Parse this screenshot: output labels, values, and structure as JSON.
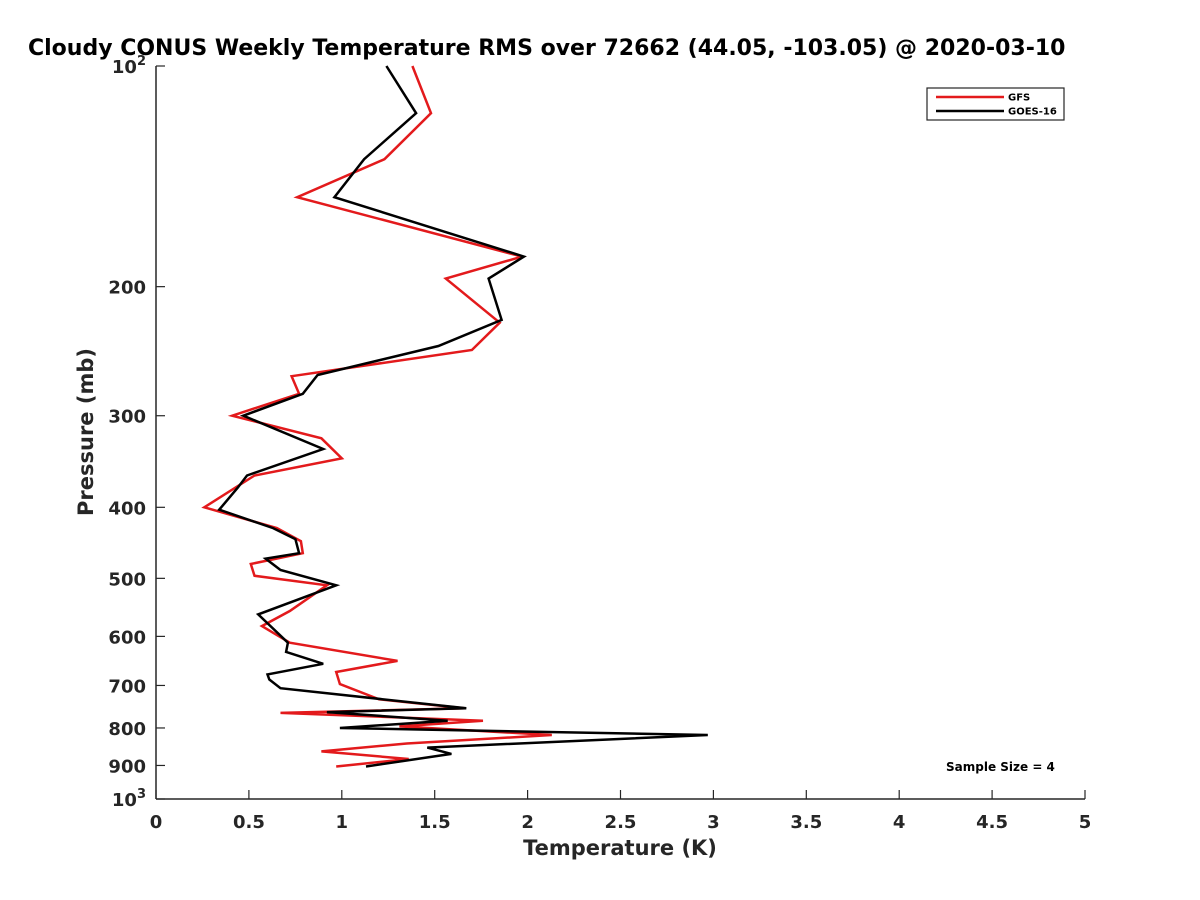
{
  "chart_data": {
    "type": "line",
    "title": "Cloudy CONUS Weekly Temperature RMS over 72662 (44.05, -103.05) @ 2020-03-10",
    "xlabel": "Temperature (K)",
    "ylabel": "Pressure (mb)",
    "xlim": [
      0,
      5
    ],
    "ylim": [
      100,
      1000
    ],
    "y_scale": "log",
    "y_reversed": true,
    "x_ticks": [
      "0",
      "0.5",
      "1",
      "1.5",
      "2",
      "2.5",
      "3",
      "3.5",
      "4",
      "4.5",
      "5"
    ],
    "y_ticks": [
      {
        "value": 100,
        "label": "10",
        "sup": "2"
      },
      {
        "value": 200,
        "label": "200",
        "sup": ""
      },
      {
        "value": 300,
        "label": "300",
        "sup": ""
      },
      {
        "value": 400,
        "label": "400",
        "sup": ""
      },
      {
        "value": 500,
        "label": "500",
        "sup": ""
      },
      {
        "value": 600,
        "label": "600",
        "sup": ""
      },
      {
        "value": 700,
        "label": "700",
        "sup": ""
      },
      {
        "value": 800,
        "label": "800",
        "sup": ""
      },
      {
        "value": 900,
        "label": "900",
        "sup": ""
      },
      {
        "value": 1000,
        "label": "10",
        "sup": "3"
      }
    ],
    "grid": false,
    "legend_position": "top-right",
    "annotation": "Sample Size = 4",
    "series": [
      {
        "name": "GFS",
        "color": "#e31a1c",
        "points": [
          [
            1.38,
            100
          ],
          [
            1.48,
            116
          ],
          [
            1.23,
            134
          ],
          [
            0.76,
            151
          ],
          [
            1.97,
            182
          ],
          [
            1.56,
            195
          ],
          [
            1.85,
            224
          ],
          [
            1.7,
            244
          ],
          [
            0.73,
            265
          ],
          [
            0.77,
            280
          ],
          [
            0.41,
            300
          ],
          [
            0.89,
            322
          ],
          [
            1.0,
            343
          ],
          [
            0.53,
            362
          ],
          [
            0.26,
            400
          ],
          [
            0.65,
            427
          ],
          [
            0.78,
            445
          ],
          [
            0.79,
            462
          ],
          [
            0.51,
            478
          ],
          [
            0.53,
            496
          ],
          [
            0.92,
            511
          ],
          [
            0.72,
            554
          ],
          [
            0.57,
            581
          ],
          [
            0.72,
            612
          ],
          [
            1.3,
            648
          ],
          [
            0.97,
            671
          ],
          [
            0.99,
            697
          ],
          [
            1.2,
            731
          ],
          [
            1.66,
            752
          ],
          [
            0.67,
            763
          ],
          [
            1.76,
            782
          ],
          [
            1.31,
            796
          ],
          [
            2.13,
            818
          ],
          [
            1.35,
            840
          ],
          [
            0.89,
            861
          ],
          [
            1.36,
            882
          ],
          [
            0.97,
            903
          ]
        ]
      },
      {
        "name": "GOES-16",
        "color": "#000000",
        "points": [
          [
            1.24,
            100
          ],
          [
            1.4,
            116
          ],
          [
            1.12,
            134
          ],
          [
            0.96,
            151
          ],
          [
            1.98,
            182
          ],
          [
            1.79,
            195
          ],
          [
            1.86,
            222
          ],
          [
            1.52,
            241
          ],
          [
            0.87,
            264
          ],
          [
            0.79,
            280
          ],
          [
            0.47,
            300
          ],
          [
            0.9,
            333
          ],
          [
            0.49,
            362
          ],
          [
            0.44,
            376
          ],
          [
            0.34,
            403
          ],
          [
            0.63,
            427
          ],
          [
            0.75,
            442
          ],
          [
            0.77,
            462
          ],
          [
            0.59,
            470
          ],
          [
            0.67,
            487
          ],
          [
            0.97,
            511
          ],
          [
            0.55,
            560
          ],
          [
            0.71,
            612
          ],
          [
            0.7,
            630
          ],
          [
            0.9,
            654
          ],
          [
            0.6,
            676
          ],
          [
            0.61,
            687
          ],
          [
            0.67,
            706
          ],
          [
            1.67,
            752
          ],
          [
            0.92,
            761
          ],
          [
            1.57,
            782
          ],
          [
            0.99,
            800
          ],
          [
            2.97,
            818
          ],
          [
            1.46,
            851
          ],
          [
            1.59,
            868
          ],
          [
            1.13,
            903
          ]
        ]
      }
    ]
  }
}
